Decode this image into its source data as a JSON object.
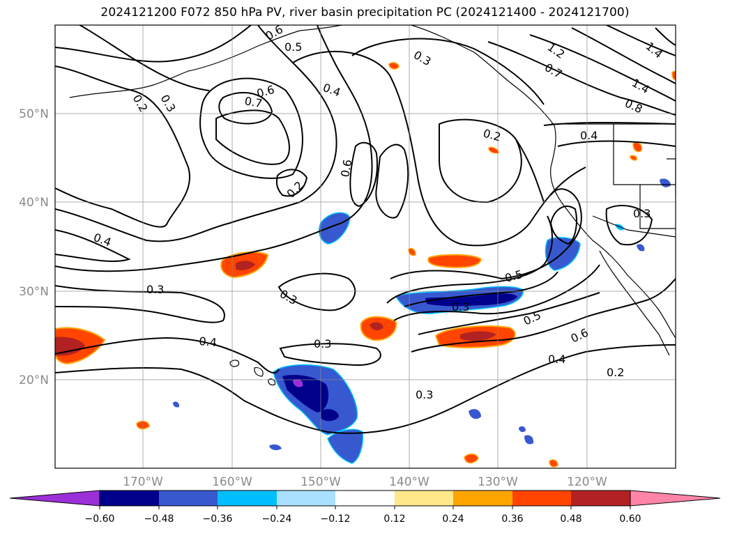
{
  "title": "2024121200 F072 850 hPa PV, river basin precipitation PC (2024121400 - 2024121700)",
  "lat_labels": [
    "50°N",
    "40°N",
    "30°N",
    "20°N"
  ],
  "lon_labels": [
    "170°W",
    "160°W",
    "150°W",
    "140°W",
    "130°W",
    "120°W"
  ],
  "contour_labels": [
    "0.6",
    "0.5",
    "0.3",
    "0.2",
    "0.3",
    "0.6",
    "0.7",
    "0.4",
    "0.2",
    "0.6",
    "0.2",
    "0.4",
    "0.3",
    "0.3",
    "0.4",
    "0.3",
    "0.3",
    "0.5",
    "0.5",
    "0.6",
    "0.4",
    "0.2",
    "0.3",
    "1.2",
    "0.7",
    "1.4",
    "1.4",
    "0.8",
    "0.4",
    "0.3"
  ],
  "colorbar": {
    "ticks": [
      "−0.60",
      "−0.48",
      "−0.36",
      "−0.24",
      "−0.12",
      "0.12",
      "0.24",
      "0.36",
      "0.48",
      "0.60"
    ],
    "colors": [
      "#9b30d9",
      "#00008b",
      "#3858cf",
      "#00bfff",
      "#a9e0ff",
      "#ffffff",
      "#ffe98a",
      "#ffa500",
      "#ff4500",
      "#b22222",
      "#ff85a8"
    ]
  },
  "shading_colors": {
    "neg_strong": "#00008b",
    "neg_mid": "#3858cf",
    "neg_light": "#00bfff",
    "neg_extreme": "#9b30d9",
    "pos_light": "#ffe98a",
    "pos_mid": "#ffa500",
    "pos_strong": "#ff4500",
    "pos_heavy": "#b22222"
  }
}
